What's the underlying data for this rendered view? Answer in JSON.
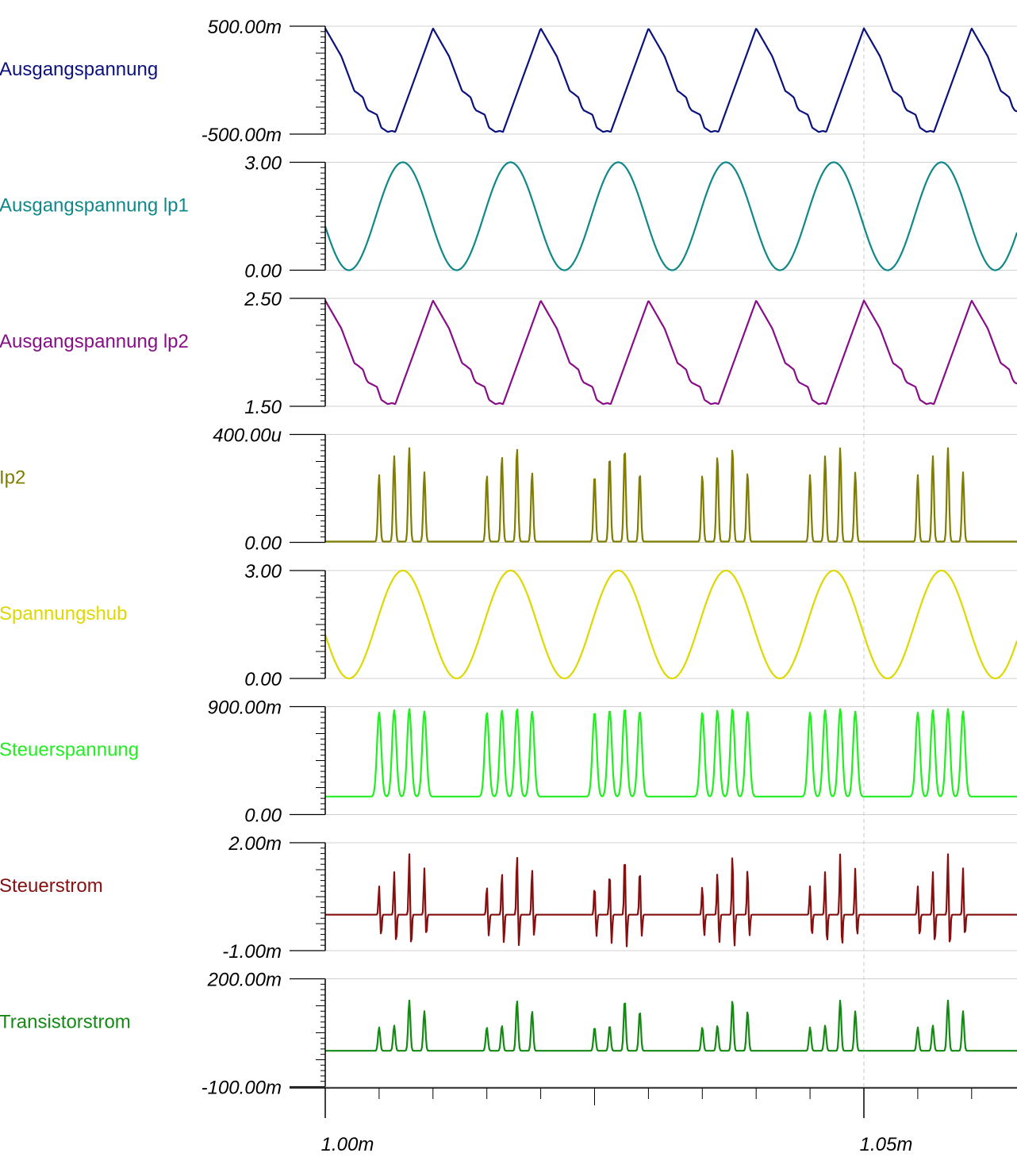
{
  "chart_data": {
    "type": "line",
    "xlabel": "",
    "xlim": [
      0.000999,
      0.001064
    ],
    "x_ticks": [
      {
        "value": 0.001,
        "label": "1.00m"
      },
      {
        "value": 0.00105,
        "label": "1.05m"
      }
    ],
    "grid": "horizontal lines at each trace's top and bottom limit; dashed vertical line at 1.05m",
    "period": 1e-05,
    "series": [
      {
        "name": "Ausgangspannung",
        "color": "#0b127d",
        "ylim": [
          -0.5,
          0.5
        ],
        "y_tick_labels": [
          "500.00m",
          "-500.00m"
        ],
        "shape_phase": [
          0,
          0.15,
          0.27,
          0.3,
          0.35,
          0.38,
          0.4,
          0.48,
          0.52,
          0.55,
          0.58,
          0.62,
          0.65,
          1.0
        ],
        "shape_value": [
          0.48,
          0.22,
          -0.1,
          -0.12,
          -0.16,
          -0.25,
          -0.28,
          -0.32,
          -0.44,
          -0.46,
          -0.48,
          -0.47,
          -0.48,
          0.48
        ]
      },
      {
        "name": "Ausgangspannung lp1",
        "color": "#10888a",
        "ylim": [
          0.0,
          3.0
        ],
        "y_tick_labels": [
          "3.00",
          "0.00"
        ],
        "sine": {
          "center": 1.5,
          "amplitude": 1.5,
          "peak_time": 0.0010072
        }
      },
      {
        "name": "Ausgangspannung lp2",
        "color": "#870e87",
        "ylim": [
          1.5,
          2.5
        ],
        "y_tick_labels": [
          "2.50",
          "1.50"
        ],
        "shape_phase": [
          0,
          0.15,
          0.27,
          0.3,
          0.35,
          0.38,
          0.4,
          0.48,
          0.52,
          0.55,
          0.58,
          0.62,
          0.65,
          1.0
        ],
        "shape_value": [
          2.48,
          2.22,
          1.9,
          1.88,
          1.84,
          1.75,
          1.72,
          1.68,
          1.56,
          1.54,
          1.52,
          1.53,
          1.52,
          2.48
        ]
      },
      {
        "name": "Ip2",
        "color": "#807d00",
        "ylim": [
          0.0,
          0.0004
        ],
        "y_tick_labels": [
          "400.00u",
          "0.00"
        ],
        "baseline": 3e-06,
        "pulse_phases": [
          0.5,
          0.64,
          0.78,
          0.92
        ],
        "pulse_heights": [
          0.00025,
          0.00032,
          0.00035,
          0.00026
        ]
      },
      {
        "name": "Spannungshub",
        "color": "#dfd800",
        "ylim": [
          0.0,
          3.0
        ],
        "y_tick_labels": [
          "3.00",
          "0.00"
        ],
        "sine": {
          "center": 1.5,
          "amplitude": 1.5,
          "peak_time": 0.0010072
        }
      },
      {
        "name": "Steuerspannung",
        "color": "#22ee22",
        "ylim": [
          0.0,
          0.9
        ],
        "y_tick_labels": [
          "900.00m",
          "0.00"
        ],
        "pulse_phases": [
          0.5,
          0.64,
          0.78,
          0.92
        ],
        "pulse_heights": [
          0.85,
          0.87,
          0.88,
          0.86
        ],
        "trough_level": 0.15
      },
      {
        "name": "Steuerstrom",
        "color": "#861010",
        "ylim": [
          -0.001,
          0.002
        ],
        "y_tick_labels": [
          "2.00m",
          "-1.00m"
        ],
        "baseline": 0.0,
        "pulse_phases": [
          0.5,
          0.64,
          0.78,
          0.92
        ],
        "pulse_heights": [
          0.0008,
          0.0012,
          0.0017,
          0.0013
        ],
        "pulse_undershoot": [
          -0.0006,
          -0.0008,
          -0.0009,
          -0.0006
        ]
      },
      {
        "name": "Transistorstrom",
        "color": "#148a14",
        "ylim": [
          -0.1,
          0.2
        ],
        "y_tick_labels": [
          "200.00m",
          "-100.00m"
        ],
        "baseline": 0.0,
        "pulse_phases": [
          0.5,
          0.64,
          0.78,
          0.92
        ],
        "pulse_heights": [
          0.065,
          0.07,
          0.14,
          0.11
        ]
      }
    ]
  }
}
